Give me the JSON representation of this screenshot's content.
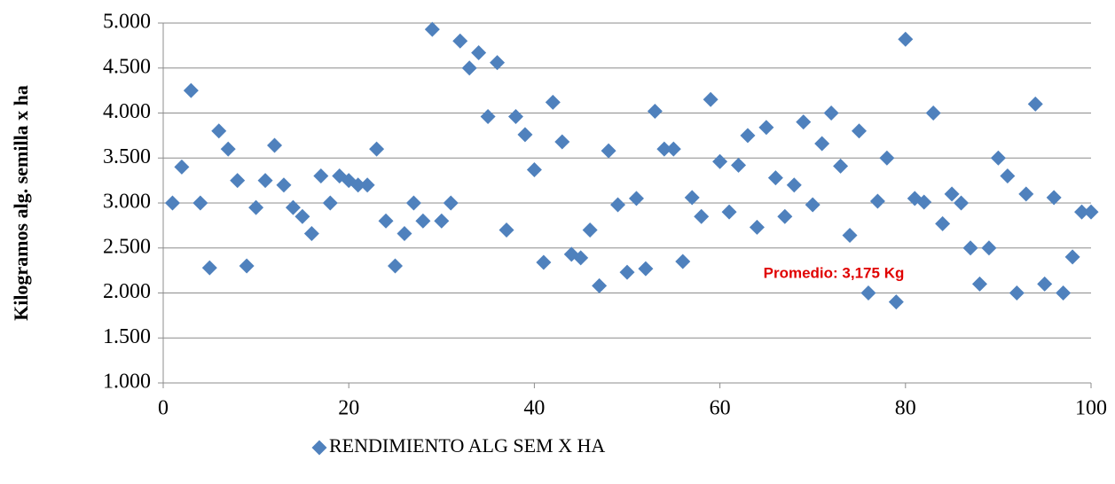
{
  "chart_data": {
    "type": "scatter",
    "y_label": "Kilogramos alg. semilla x ha",
    "annotation": "Promedio: 3,175 Kg",
    "xlim": [
      0,
      100
    ],
    "xticks": [
      0,
      20,
      40,
      60,
      80,
      100
    ],
    "ylim": [
      1000,
      5000
    ],
    "yticks": [
      {
        "value": 1000,
        "label": "1.000"
      },
      {
        "value": 1500,
        "label": "1.500"
      },
      {
        "value": 2000,
        "label": "2.000"
      },
      {
        "value": 2500,
        "label": "2.500"
      },
      {
        "value": 3000,
        "label": "3.000"
      },
      {
        "value": 3500,
        "label": "3.500"
      },
      {
        "value": 4000,
        "label": "4.000"
      },
      {
        "value": 4500,
        "label": "4.500"
      },
      {
        "value": 5000,
        "label": "5.000"
      }
    ],
    "grid": true,
    "legend": "bottom",
    "series": [
      {
        "name": "RENDIMIENTO ALG SEM X HA",
        "color": "#4f81bd",
        "x": [
          1,
          2,
          3,
          4,
          5,
          6,
          7,
          8,
          9,
          10,
          11,
          12,
          13,
          14,
          15,
          16,
          17,
          18,
          19,
          20,
          21,
          22,
          23,
          24,
          25,
          26,
          27,
          28,
          29,
          30,
          31,
          32,
          33,
          34,
          35,
          36,
          37,
          38,
          39,
          40,
          41,
          42,
          43,
          44,
          45,
          46,
          47,
          48,
          49,
          50,
          51,
          52,
          53,
          54,
          55,
          56,
          57,
          58,
          59,
          60,
          61,
          62,
          63,
          64,
          65,
          66,
          67,
          68,
          69,
          70,
          71,
          72,
          73,
          74,
          75,
          76,
          77,
          78,
          79,
          80,
          81,
          82,
          83,
          84,
          85,
          86,
          87,
          88,
          89,
          90,
          91,
          92,
          93,
          94,
          95,
          96,
          97,
          98,
          99,
          100
        ],
        "values": [
          3000,
          3400,
          4250,
          3000,
          2280,
          3800,
          3600,
          3250,
          2300,
          2950,
          3250,
          3640,
          3200,
          2950,
          2850,
          2660,
          3300,
          3000,
          3300,
          3250,
          3200,
          3200,
          3600,
          2800,
          2300,
          2660,
          3000,
          2800,
          4930,
          2800,
          3000,
          4800,
          4500,
          4670,
          3960,
          4560,
          2700,
          3960,
          3760,
          3370,
          2340,
          4120,
          3680,
          2430,
          2390,
          2700,
          2080,
          3580,
          2980,
          2230,
          3050,
          2270,
          4020,
          3600,
          3600,
          2350,
          3060,
          2850,
          4150,
          3460,
          2900,
          3420,
          3750,
          2730,
          3840,
          3280,
          2850,
          3200,
          3900,
          2980,
          3660,
          4000,
          3410,
          2640,
          3800,
          2000,
          3020,
          3500,
          1900,
          4820,
          3050,
          3010,
          4000,
          2770,
          3100,
          3000,
          2500,
          2100,
          2500,
          3500,
          3300,
          2000,
          3100,
          4100,
          2100,
          3060,
          2000,
          2400,
          2900,
          2900
        ]
      }
    ]
  }
}
